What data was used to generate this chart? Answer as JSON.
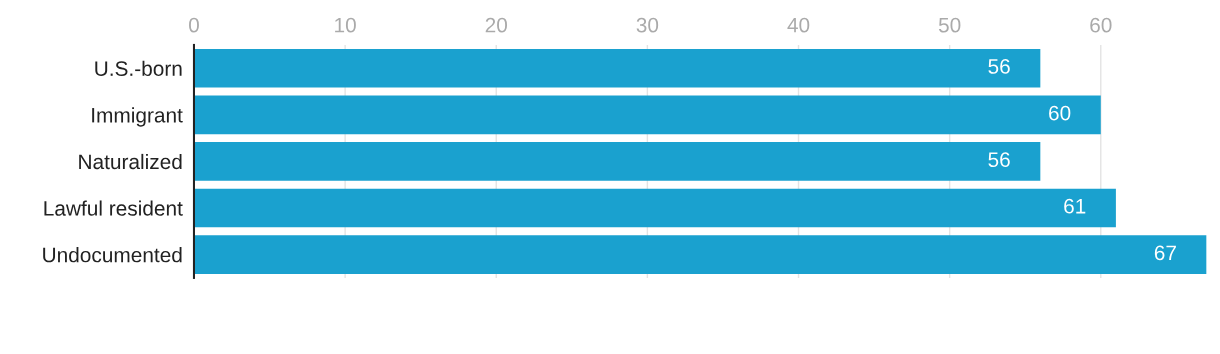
{
  "chart_data": {
    "type": "bar",
    "orientation": "horizontal",
    "categories": [
      "U.S.-born",
      "Immigrant",
      "Naturalized",
      "Lawful resident",
      "Undocumented"
    ],
    "values": [
      56,
      60,
      56,
      61,
      67
    ],
    "color": "#1aa1cf",
    "xlim": [
      0,
      67
    ],
    "xticks": [
      0,
      10,
      20,
      30,
      40,
      50,
      60
    ],
    "grid": "x",
    "data_labels": true
  }
}
